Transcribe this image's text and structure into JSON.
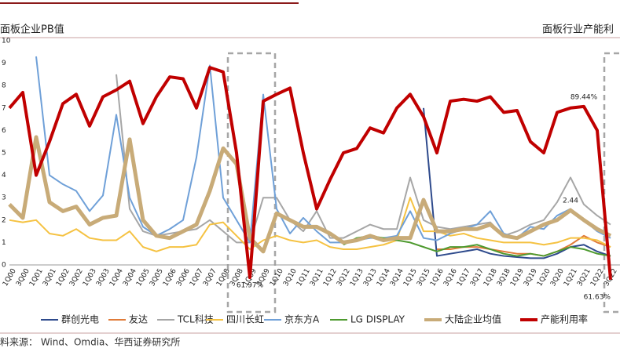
{
  "chart_data": {
    "type": "line",
    "title": "面板企业PB值",
    "subtitle": "面板行业产能利",
    "source": "料来源： Wind、Omdia、华西证券研究所",
    "categories": [
      "1Q00",
      "3Q00",
      "1Q01",
      "3Q01",
      "1Q02",
      "3Q02",
      "1Q03",
      "3Q03",
      "1Q04",
      "3Q04",
      "1Q05",
      "3Q05",
      "1Q06",
      "3Q06",
      "1Q07",
      "3Q07",
      "1Q08",
      "3Q08",
      "1Q09",
      "3Q09",
      "1Q10",
      "3Q10",
      "1Q11",
      "3Q11",
      "1Q12",
      "3Q12",
      "1Q13",
      "3Q13",
      "1Q14",
      "3Q14",
      "1Q15",
      "3Q15",
      "1Q16",
      "3Q16",
      "1Q17",
      "3Q17",
      "1Q18",
      "3Q18",
      "1Q19",
      "3Q19",
      "1Q20",
      "3Q20",
      "1Q21",
      "3Q21",
      "1Q22",
      "3Q22"
    ],
    "ylim": [
      0,
      10
    ],
    "yticks": [
      0,
      1,
      2,
      3,
      4,
      5,
      6,
      7,
      8,
      9,
      10
    ],
    "y2lim": [
      64,
      100
    ],
    "grid": false,
    "legend": "bottom",
    "series": [
      {
        "name": "群创光电",
        "color": "#2e4a8c",
        "width": 2,
        "values": [
          null,
          null,
          null,
          null,
          null,
          null,
          null,
          null,
          null,
          null,
          null,
          null,
          null,
          null,
          null,
          null,
          null,
          null,
          null,
          null,
          null,
          null,
          null,
          null,
          null,
          null,
          null,
          null,
          null,
          null,
          null,
          7.0,
          0.4,
          0.5,
          0.6,
          0.7,
          0.5,
          0.4,
          0.35,
          0.3,
          0.3,
          0.5,
          0.8,
          0.9,
          0.6,
          0.4
        ]
      },
      {
        "name": "友达",
        "color": "#e07b39",
        "width": 2,
        "values": [
          null,
          null,
          null,
          null,
          null,
          null,
          null,
          null,
          null,
          null,
          null,
          null,
          null,
          null,
          null,
          null,
          null,
          null,
          null,
          null,
          null,
          null,
          null,
          null,
          null,
          null,
          null,
          null,
          null,
          null,
          null,
          null,
          0.7,
          0.7,
          0.8,
          0.8,
          0.7,
          0.6,
          0.5,
          0.5,
          0.4,
          0.6,
          0.9,
          1.3,
          1.0,
          0.8
        ]
      },
      {
        "name": "TCL科技",
        "color": "#a6a6a6",
        "width": 2,
        "values": [
          null,
          null,
          null,
          null,
          null,
          null,
          null,
          null,
          8.5,
          2.5,
          1.5,
          1.3,
          1.4,
          1.5,
          1.6,
          2.0,
          1.5,
          1.0,
          1.0,
          3.0,
          3.0,
          2.0,
          1.5,
          2.4,
          1.2,
          1.2,
          1.5,
          1.8,
          1.6,
          1.6,
          3.9,
          2.0,
          1.7,
          1.6,
          1.7,
          1.8,
          1.9,
          1.3,
          1.5,
          1.8,
          2.0,
          2.8,
          3.9,
          2.7,
          2.2,
          1.8
        ]
      },
      {
        "name": "四川长虹",
        "color": "#f5c242",
        "width": 2,
        "values": [
          2.0,
          1.9,
          2.0,
          1.4,
          1.3,
          1.6,
          1.2,
          1.1,
          1.1,
          1.5,
          0.8,
          0.6,
          0.8,
          0.8,
          0.9,
          1.8,
          1.9,
          1.3,
          0.7,
          1.1,
          1.3,
          1.1,
          1.0,
          1.1,
          0.8,
          0.7,
          0.7,
          0.8,
          0.9,
          1.1,
          3.0,
          1.5,
          1.5,
          1.3,
          1.4,
          1.2,
          1.1,
          1.0,
          1.0,
          1.0,
          0.9,
          1.0,
          1.2,
          1.2,
          1.1,
          0.8
        ]
      },
      {
        "name": "京东方A",
        "color": "#6fa0d8",
        "width": 2,
        "values": [
          null,
          null,
          9.3,
          4.0,
          3.6,
          3.3,
          2.4,
          3.1,
          6.7,
          3.0,
          1.7,
          1.3,
          1.6,
          2.0,
          4.8,
          8.9,
          3.0,
          2.0,
          1.0,
          7.6,
          2.5,
          1.4,
          2.1,
          1.5,
          1.0,
          1.0,
          1.1,
          1.2,
          1.2,
          1.3,
          2.4,
          1.2,
          1.1,
          1.4,
          1.6,
          1.8,
          2.4,
          1.4,
          1.2,
          1.7,
          1.6,
          2.2,
          2.5,
          2.0,
          1.5,
          1.2
        ]
      },
      {
        "name": "LG DISPLAY",
        "color": "#4e9a2f",
        "width": 2,
        "values": [
          null,
          null,
          null,
          null,
          null,
          null,
          null,
          null,
          null,
          null,
          null,
          null,
          null,
          null,
          null,
          null,
          null,
          null,
          null,
          null,
          null,
          null,
          null,
          null,
          null,
          0.9,
          1.2,
          1.3,
          1.2,
          1.1,
          1.0,
          0.8,
          0.6,
          0.8,
          0.8,
          0.9,
          0.7,
          0.5,
          0.4,
          0.5,
          0.4,
          0.6,
          0.8,
          0.7,
          0.5,
          0.4
        ]
      },
      {
        "name": "大陆企业均值",
        "color": "#c8ab78",
        "width": 5,
        "values": [
          2.7,
          2.1,
          5.7,
          2.8,
          2.4,
          2.6,
          1.8,
          2.1,
          2.2,
          5.6,
          2.0,
          1.3,
          1.2,
          1.5,
          1.8,
          3.3,
          5.2,
          4.5,
          1.2,
          0.6,
          2.3,
          2.0,
          1.7,
          1.7,
          1.4,
          1.0,
          1.1,
          1.3,
          1.1,
          1.2,
          1.2,
          2.9,
          1.5,
          1.5,
          1.6,
          1.6,
          1.8,
          1.3,
          1.2,
          1.5,
          1.8,
          2.0,
          2.44,
          2.0,
          1.6,
          1.3
        ],
        "value_labels": [
          null,
          null,
          null,
          null,
          null,
          null,
          null,
          null,
          null,
          null,
          null,
          null,
          null,
          null,
          null,
          null,
          null,
          null,
          null,
          null,
          null,
          null,
          null,
          null,
          null,
          null,
          null,
          null,
          null,
          null,
          null,
          null,
          null,
          null,
          null,
          null,
          null,
          null,
          null,
          null,
          null,
          null,
          "2.44",
          null,
          null,
          null
        ]
      },
      {
        "name": "产能利用率",
        "color": "#c00000",
        "width": 4,
        "axis": "y2",
        "values": [
          89.2,
          91.7,
          78.4,
          83.8,
          89.9,
          91.4,
          86.3,
          91.0,
          92.1,
          93.5,
          86.7,
          91.0,
          94.2,
          93.9,
          89.2,
          95.7,
          95.0,
          82.0,
          61.97,
          90.3,
          91.4,
          92.4,
          82.0,
          73.0,
          77.7,
          82.0,
          82.7,
          86.0,
          85.2,
          89.2,
          91.4,
          87.8,
          82.0,
          90.3,
          90.6,
          90.3,
          91.0,
          88.5,
          88.8,
          83.8,
          82.0,
          88.5,
          89.2,
          89.44,
          85.6,
          61.63
        ],
        "value_labels": [
          null,
          null,
          null,
          null,
          null,
          null,
          null,
          null,
          null,
          null,
          null,
          null,
          null,
          null,
          null,
          null,
          null,
          null,
          "61.97%",
          null,
          null,
          null,
          null,
          null,
          null,
          null,
          null,
          null,
          null,
          null,
          null,
          null,
          null,
          null,
          null,
          null,
          null,
          null,
          null,
          null,
          null,
          null,
          null,
          "89.44%",
          null,
          "61.63%"
        ]
      }
    ]
  }
}
